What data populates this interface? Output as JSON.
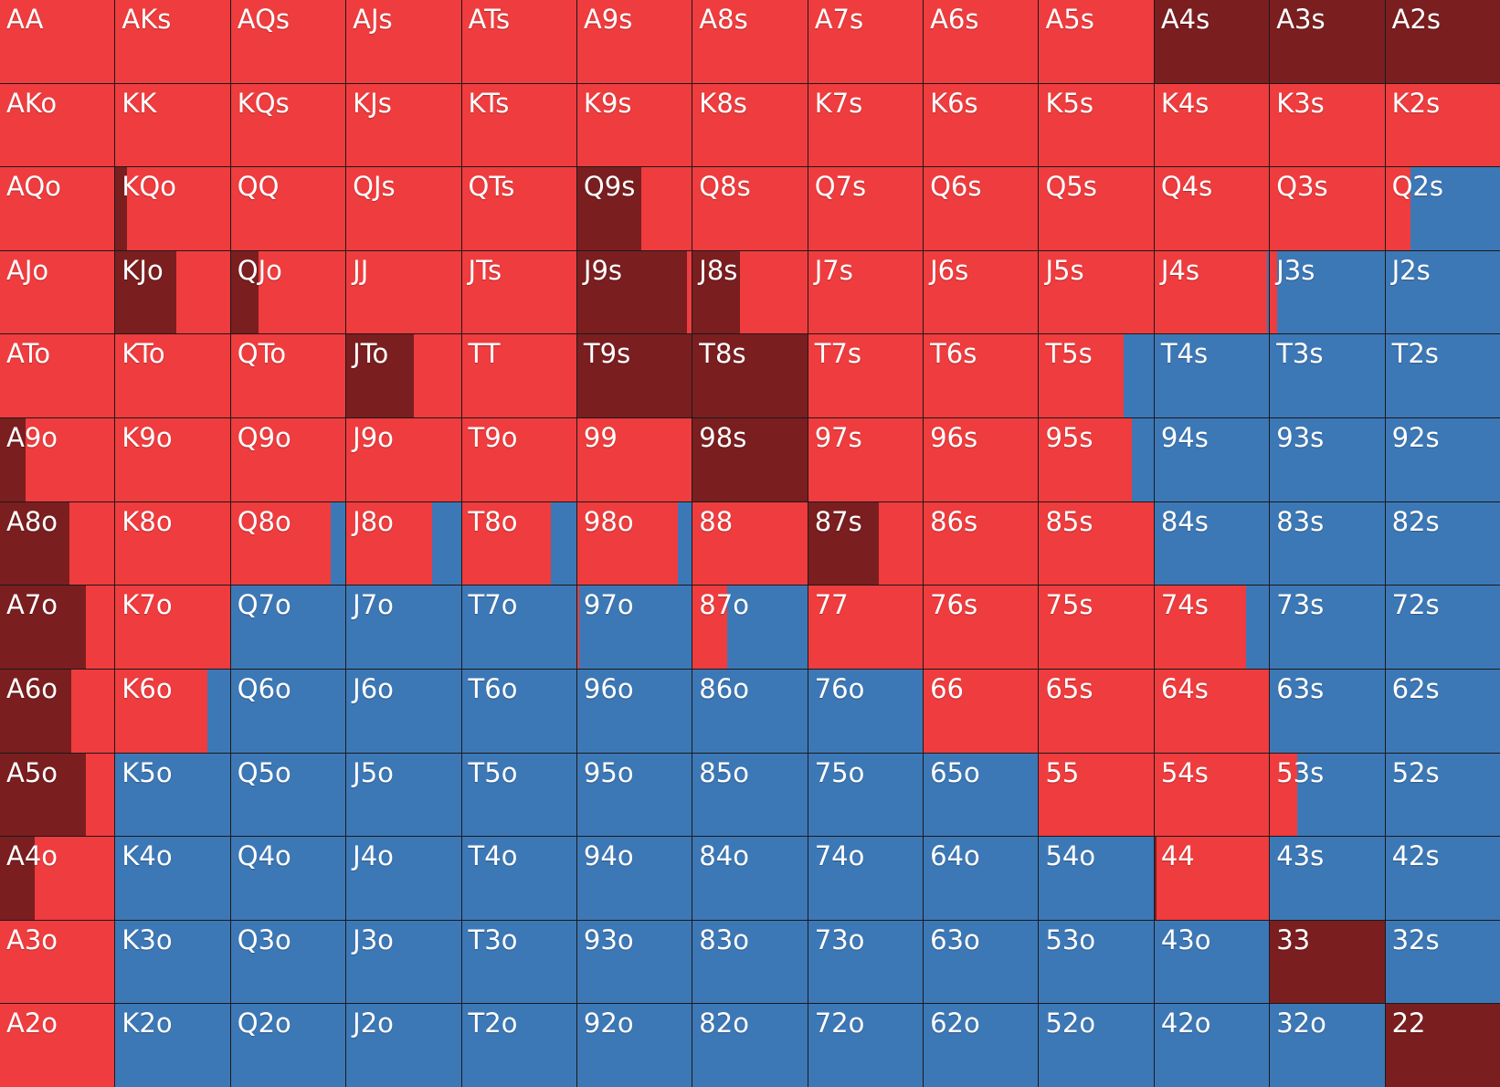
{
  "legend": {
    "dark": {
      "name": "",
      "color": "#7b1e20"
    },
    "red": {
      "name": "",
      "color": "#ef3c3e"
    },
    "blue": {
      "name": "",
      "color": "#3d78b6"
    }
  },
  "rows": [
    [
      {
        "hand": "AA",
        "dark": 0,
        "red": 100
      },
      {
        "hand": "AKs",
        "dark": 0,
        "red": 100
      },
      {
        "hand": "AQs",
        "dark": 0,
        "red": 100
      },
      {
        "hand": "AJs",
        "dark": 0,
        "red": 100
      },
      {
        "hand": "ATs",
        "dark": 0,
        "red": 100
      },
      {
        "hand": "A9s",
        "dark": 0,
        "red": 100
      },
      {
        "hand": "A8s",
        "dark": 0,
        "red": 100
      },
      {
        "hand": "A7s",
        "dark": 0,
        "red": 100
      },
      {
        "hand": "A6s",
        "dark": 0,
        "red": 100
      },
      {
        "hand": "A5s",
        "dark": 0,
        "red": 100
      },
      {
        "hand": "A4s",
        "dark": 100,
        "red": 0
      },
      {
        "hand": "A3s",
        "dark": 100,
        "red": 0
      },
      {
        "hand": "A2s",
        "dark": 100,
        "red": 0
      }
    ],
    [
      {
        "hand": "AKo",
        "dark": 0,
        "red": 100
      },
      {
        "hand": "KK",
        "dark": 0,
        "red": 100
      },
      {
        "hand": "KQs",
        "dark": 0,
        "red": 100
      },
      {
        "hand": "KJs",
        "dark": 0,
        "red": 100
      },
      {
        "hand": "KTs",
        "dark": 0,
        "red": 100
      },
      {
        "hand": "K9s",
        "dark": 0,
        "red": 100
      },
      {
        "hand": "K8s",
        "dark": 0,
        "red": 100
      },
      {
        "hand": "K7s",
        "dark": 0,
        "red": 100
      },
      {
        "hand": "K6s",
        "dark": 0,
        "red": 100
      },
      {
        "hand": "K5s",
        "dark": 0,
        "red": 100
      },
      {
        "hand": "K4s",
        "dark": 0,
        "red": 100
      },
      {
        "hand": "K3s",
        "dark": 0,
        "red": 100
      },
      {
        "hand": "K2s",
        "dark": 0,
        "red": 100
      }
    ],
    [
      {
        "hand": "AQo",
        "dark": 0,
        "red": 100
      },
      {
        "hand": "KQo",
        "dark": 10,
        "red": 90
      },
      {
        "hand": "QQ",
        "dark": 0,
        "red": 100
      },
      {
        "hand": "QJs",
        "dark": 0,
        "red": 100
      },
      {
        "hand": "QTs",
        "dark": 0,
        "red": 100
      },
      {
        "hand": "Q9s",
        "dark": 56,
        "red": 44
      },
      {
        "hand": "Q8s",
        "dark": 0,
        "red": 100
      },
      {
        "hand": "Q7s",
        "dark": 0,
        "red": 100
      },
      {
        "hand": "Q6s",
        "dark": 0,
        "red": 100
      },
      {
        "hand": "Q5s",
        "dark": 0,
        "red": 100
      },
      {
        "hand": "Q4s",
        "dark": 0,
        "red": 100
      },
      {
        "hand": "Q3s",
        "dark": 0,
        "red": 100
      },
      {
        "hand": "Q2s",
        "dark": 0,
        "red": 22
      }
    ],
    [
      {
        "hand": "AJo",
        "dark": 0,
        "red": 100
      },
      {
        "hand": "KJo",
        "dark": 53,
        "red": 47
      },
      {
        "hand": "QJo",
        "dark": 24,
        "red": 76
      },
      {
        "hand": "JJ",
        "dark": 0,
        "red": 100
      },
      {
        "hand": "JTs",
        "dark": 0,
        "red": 100
      },
      {
        "hand": "J9s",
        "dark": 96,
        "red": 4
      },
      {
        "hand": "J8s",
        "dark": 41,
        "red": 59
      },
      {
        "hand": "J7s",
        "dark": 0,
        "red": 100
      },
      {
        "hand": "J6s",
        "dark": 0,
        "red": 100
      },
      {
        "hand": "J5s",
        "dark": 0,
        "red": 100
      },
      {
        "hand": "J4s",
        "dark": 0,
        "red": 98
      },
      {
        "hand": "J3s",
        "dark": 0,
        "red": 6
      },
      {
        "hand": "J2s",
        "dark": 0,
        "red": 0
      }
    ],
    [
      {
        "hand": "ATo",
        "dark": 0,
        "red": 100
      },
      {
        "hand": "KTo",
        "dark": 0,
        "red": 100
      },
      {
        "hand": "QTo",
        "dark": 0,
        "red": 100
      },
      {
        "hand": "JTo",
        "dark": 59,
        "red": 41
      },
      {
        "hand": "TT",
        "dark": 0,
        "red": 100
      },
      {
        "hand": "T9s",
        "dark": 100,
        "red": 0
      },
      {
        "hand": "T8s",
        "dark": 100,
        "red": 0
      },
      {
        "hand": "T7s",
        "dark": 0,
        "red": 100
      },
      {
        "hand": "T6s",
        "dark": 0,
        "red": 100
      },
      {
        "hand": "T5s",
        "dark": 0,
        "red": 74
      },
      {
        "hand": "T4s",
        "dark": 0,
        "red": 0
      },
      {
        "hand": "T3s",
        "dark": 0,
        "red": 0
      },
      {
        "hand": "T2s",
        "dark": 0,
        "red": 0
      }
    ],
    [
      {
        "hand": "A9o",
        "dark": 22,
        "red": 78
      },
      {
        "hand": "K9o",
        "dark": 0,
        "red": 100
      },
      {
        "hand": "Q9o",
        "dark": 0,
        "red": 100
      },
      {
        "hand": "J9o",
        "dark": 0,
        "red": 100
      },
      {
        "hand": "T9o",
        "dark": 0,
        "red": 100
      },
      {
        "hand": "99",
        "dark": 0,
        "red": 100
      },
      {
        "hand": "98s",
        "dark": 100,
        "red": 0
      },
      {
        "hand": "97s",
        "dark": 0,
        "red": 100
      },
      {
        "hand": "96s",
        "dark": 0,
        "red": 100
      },
      {
        "hand": "95s",
        "dark": 0,
        "red": 81
      },
      {
        "hand": "94s",
        "dark": 0,
        "red": 0
      },
      {
        "hand": "93s",
        "dark": 0,
        "red": 0
      },
      {
        "hand": "92s",
        "dark": 0,
        "red": 0
      }
    ],
    [
      {
        "hand": "A8o",
        "dark": 61,
        "red": 39
      },
      {
        "hand": "K8o",
        "dark": 0,
        "red": 100
      },
      {
        "hand": "Q8o",
        "dark": 0,
        "red": 87
      },
      {
        "hand": "J8o",
        "dark": 0,
        "red": 75
      },
      {
        "hand": "T8o",
        "dark": 0,
        "red": 78
      },
      {
        "hand": "98o",
        "dark": 0,
        "red": 88
      },
      {
        "hand": "88",
        "dark": 0,
        "red": 100
      },
      {
        "hand": "87s",
        "dark": 62,
        "red": 38
      },
      {
        "hand": "86s",
        "dark": 0,
        "red": 100
      },
      {
        "hand": "85s",
        "dark": 0,
        "red": 100
      },
      {
        "hand": "84s",
        "dark": 0,
        "red": 0
      },
      {
        "hand": "83s",
        "dark": 0,
        "red": 0
      },
      {
        "hand": "82s",
        "dark": 0,
        "red": 0
      }
    ],
    [
      {
        "hand": "A7o",
        "dark": 75,
        "red": 25
      },
      {
        "hand": "K7o",
        "dark": 0,
        "red": 100
      },
      {
        "hand": "Q7o",
        "dark": 0,
        "red": 0
      },
      {
        "hand": "J7o",
        "dark": 0,
        "red": 0
      },
      {
        "hand": "T7o",
        "dark": 0,
        "red": 0
      },
      {
        "hand": "97o",
        "dark": 0,
        "red": 2
      },
      {
        "hand": "87o",
        "dark": 0,
        "red": 30
      },
      {
        "hand": "77",
        "dark": 0,
        "red": 100
      },
      {
        "hand": "76s",
        "dark": 0,
        "red": 100
      },
      {
        "hand": "75s",
        "dark": 0,
        "red": 100
      },
      {
        "hand": "74s",
        "dark": 0,
        "red": 80
      },
      {
        "hand": "73s",
        "dark": 0,
        "red": 0
      },
      {
        "hand": "72s",
        "dark": 0,
        "red": 0
      }
    ],
    [
      {
        "hand": "A6o",
        "dark": 62,
        "red": 38
      },
      {
        "hand": "K6o",
        "dark": 0,
        "red": 80
      },
      {
        "hand": "Q6o",
        "dark": 0,
        "red": 0
      },
      {
        "hand": "J6o",
        "dark": 0,
        "red": 0
      },
      {
        "hand": "T6o",
        "dark": 0,
        "red": 0
      },
      {
        "hand": "96o",
        "dark": 0,
        "red": 0
      },
      {
        "hand": "86o",
        "dark": 0,
        "red": 0
      },
      {
        "hand": "76o",
        "dark": 0,
        "red": 0
      },
      {
        "hand": "66",
        "dark": 0,
        "red": 100
      },
      {
        "hand": "65s",
        "dark": 0,
        "red": 100
      },
      {
        "hand": "64s",
        "dark": 0,
        "red": 100
      },
      {
        "hand": "63s",
        "dark": 0,
        "red": 0
      },
      {
        "hand": "62s",
        "dark": 0,
        "red": 0
      }
    ],
    [
      {
        "hand": "A5o",
        "dark": 75,
        "red": 25
      },
      {
        "hand": "K5o",
        "dark": 0,
        "red": 0
      },
      {
        "hand": "Q5o",
        "dark": 0,
        "red": 0
      },
      {
        "hand": "J5o",
        "dark": 0,
        "red": 0
      },
      {
        "hand": "T5o",
        "dark": 0,
        "red": 0
      },
      {
        "hand": "95o",
        "dark": 0,
        "red": 0
      },
      {
        "hand": "85o",
        "dark": 0,
        "red": 0
      },
      {
        "hand": "75o",
        "dark": 0,
        "red": 0
      },
      {
        "hand": "65o",
        "dark": 0,
        "red": 0
      },
      {
        "hand": "55",
        "dark": 0,
        "red": 100
      },
      {
        "hand": "54s",
        "dark": 0,
        "red": 100
      },
      {
        "hand": "53s",
        "dark": 0,
        "red": 24
      },
      {
        "hand": "52s",
        "dark": 0,
        "red": 0
      }
    ],
    [
      {
        "hand": "A4o",
        "dark": 30,
        "red": 70
      },
      {
        "hand": "K4o",
        "dark": 0,
        "red": 0
      },
      {
        "hand": "Q4o",
        "dark": 0,
        "red": 0
      },
      {
        "hand": "J4o",
        "dark": 0,
        "red": 0
      },
      {
        "hand": "T4o",
        "dark": 0,
        "red": 0
      },
      {
        "hand": "94o",
        "dark": 0,
        "red": 0
      },
      {
        "hand": "84o",
        "dark": 0,
        "red": 0
      },
      {
        "hand": "74o",
        "dark": 0,
        "red": 0
      },
      {
        "hand": "64o",
        "dark": 0,
        "red": 0
      },
      {
        "hand": "54o",
        "dark": 0,
        "red": 0
      },
      {
        "hand": "44",
        "dark": 2,
        "red": 98
      },
      {
        "hand": "43s",
        "dark": 0,
        "red": 0
      },
      {
        "hand": "42s",
        "dark": 0,
        "red": 0
      }
    ],
    [
      {
        "hand": "A3o",
        "dark": 0,
        "red": 100
      },
      {
        "hand": "K3o",
        "dark": 0,
        "red": 0
      },
      {
        "hand": "Q3o",
        "dark": 0,
        "red": 0
      },
      {
        "hand": "J3o",
        "dark": 0,
        "red": 0
      },
      {
        "hand": "T3o",
        "dark": 0,
        "red": 0
      },
      {
        "hand": "93o",
        "dark": 0,
        "red": 0
      },
      {
        "hand": "83o",
        "dark": 0,
        "red": 0
      },
      {
        "hand": "73o",
        "dark": 0,
        "red": 0
      },
      {
        "hand": "63o",
        "dark": 0,
        "red": 0
      },
      {
        "hand": "53o",
        "dark": 0,
        "red": 0
      },
      {
        "hand": "43o",
        "dark": 0,
        "red": 0
      },
      {
        "hand": "33",
        "dark": 100,
        "red": 0
      },
      {
        "hand": "32s",
        "dark": 0,
        "red": 0
      }
    ],
    [
      {
        "hand": "A2o",
        "dark": 0,
        "red": 100
      },
      {
        "hand": "K2o",
        "dark": 0,
        "red": 0
      },
      {
        "hand": "Q2o",
        "dark": 0,
        "red": 0
      },
      {
        "hand": "J2o",
        "dark": 0,
        "red": 0
      },
      {
        "hand": "T2o",
        "dark": 0,
        "red": 0
      },
      {
        "hand": "92o",
        "dark": 0,
        "red": 0
      },
      {
        "hand": "82o",
        "dark": 0,
        "red": 0
      },
      {
        "hand": "72o",
        "dark": 0,
        "red": 0
      },
      {
        "hand": "62o",
        "dark": 0,
        "red": 0
      },
      {
        "hand": "52o",
        "dark": 0,
        "red": 0
      },
      {
        "hand": "42o",
        "dark": 0,
        "red": 0
      },
      {
        "hand": "32o",
        "dark": 0,
        "red": 0
      },
      {
        "hand": "22",
        "dark": 100,
        "red": 0
      }
    ]
  ]
}
